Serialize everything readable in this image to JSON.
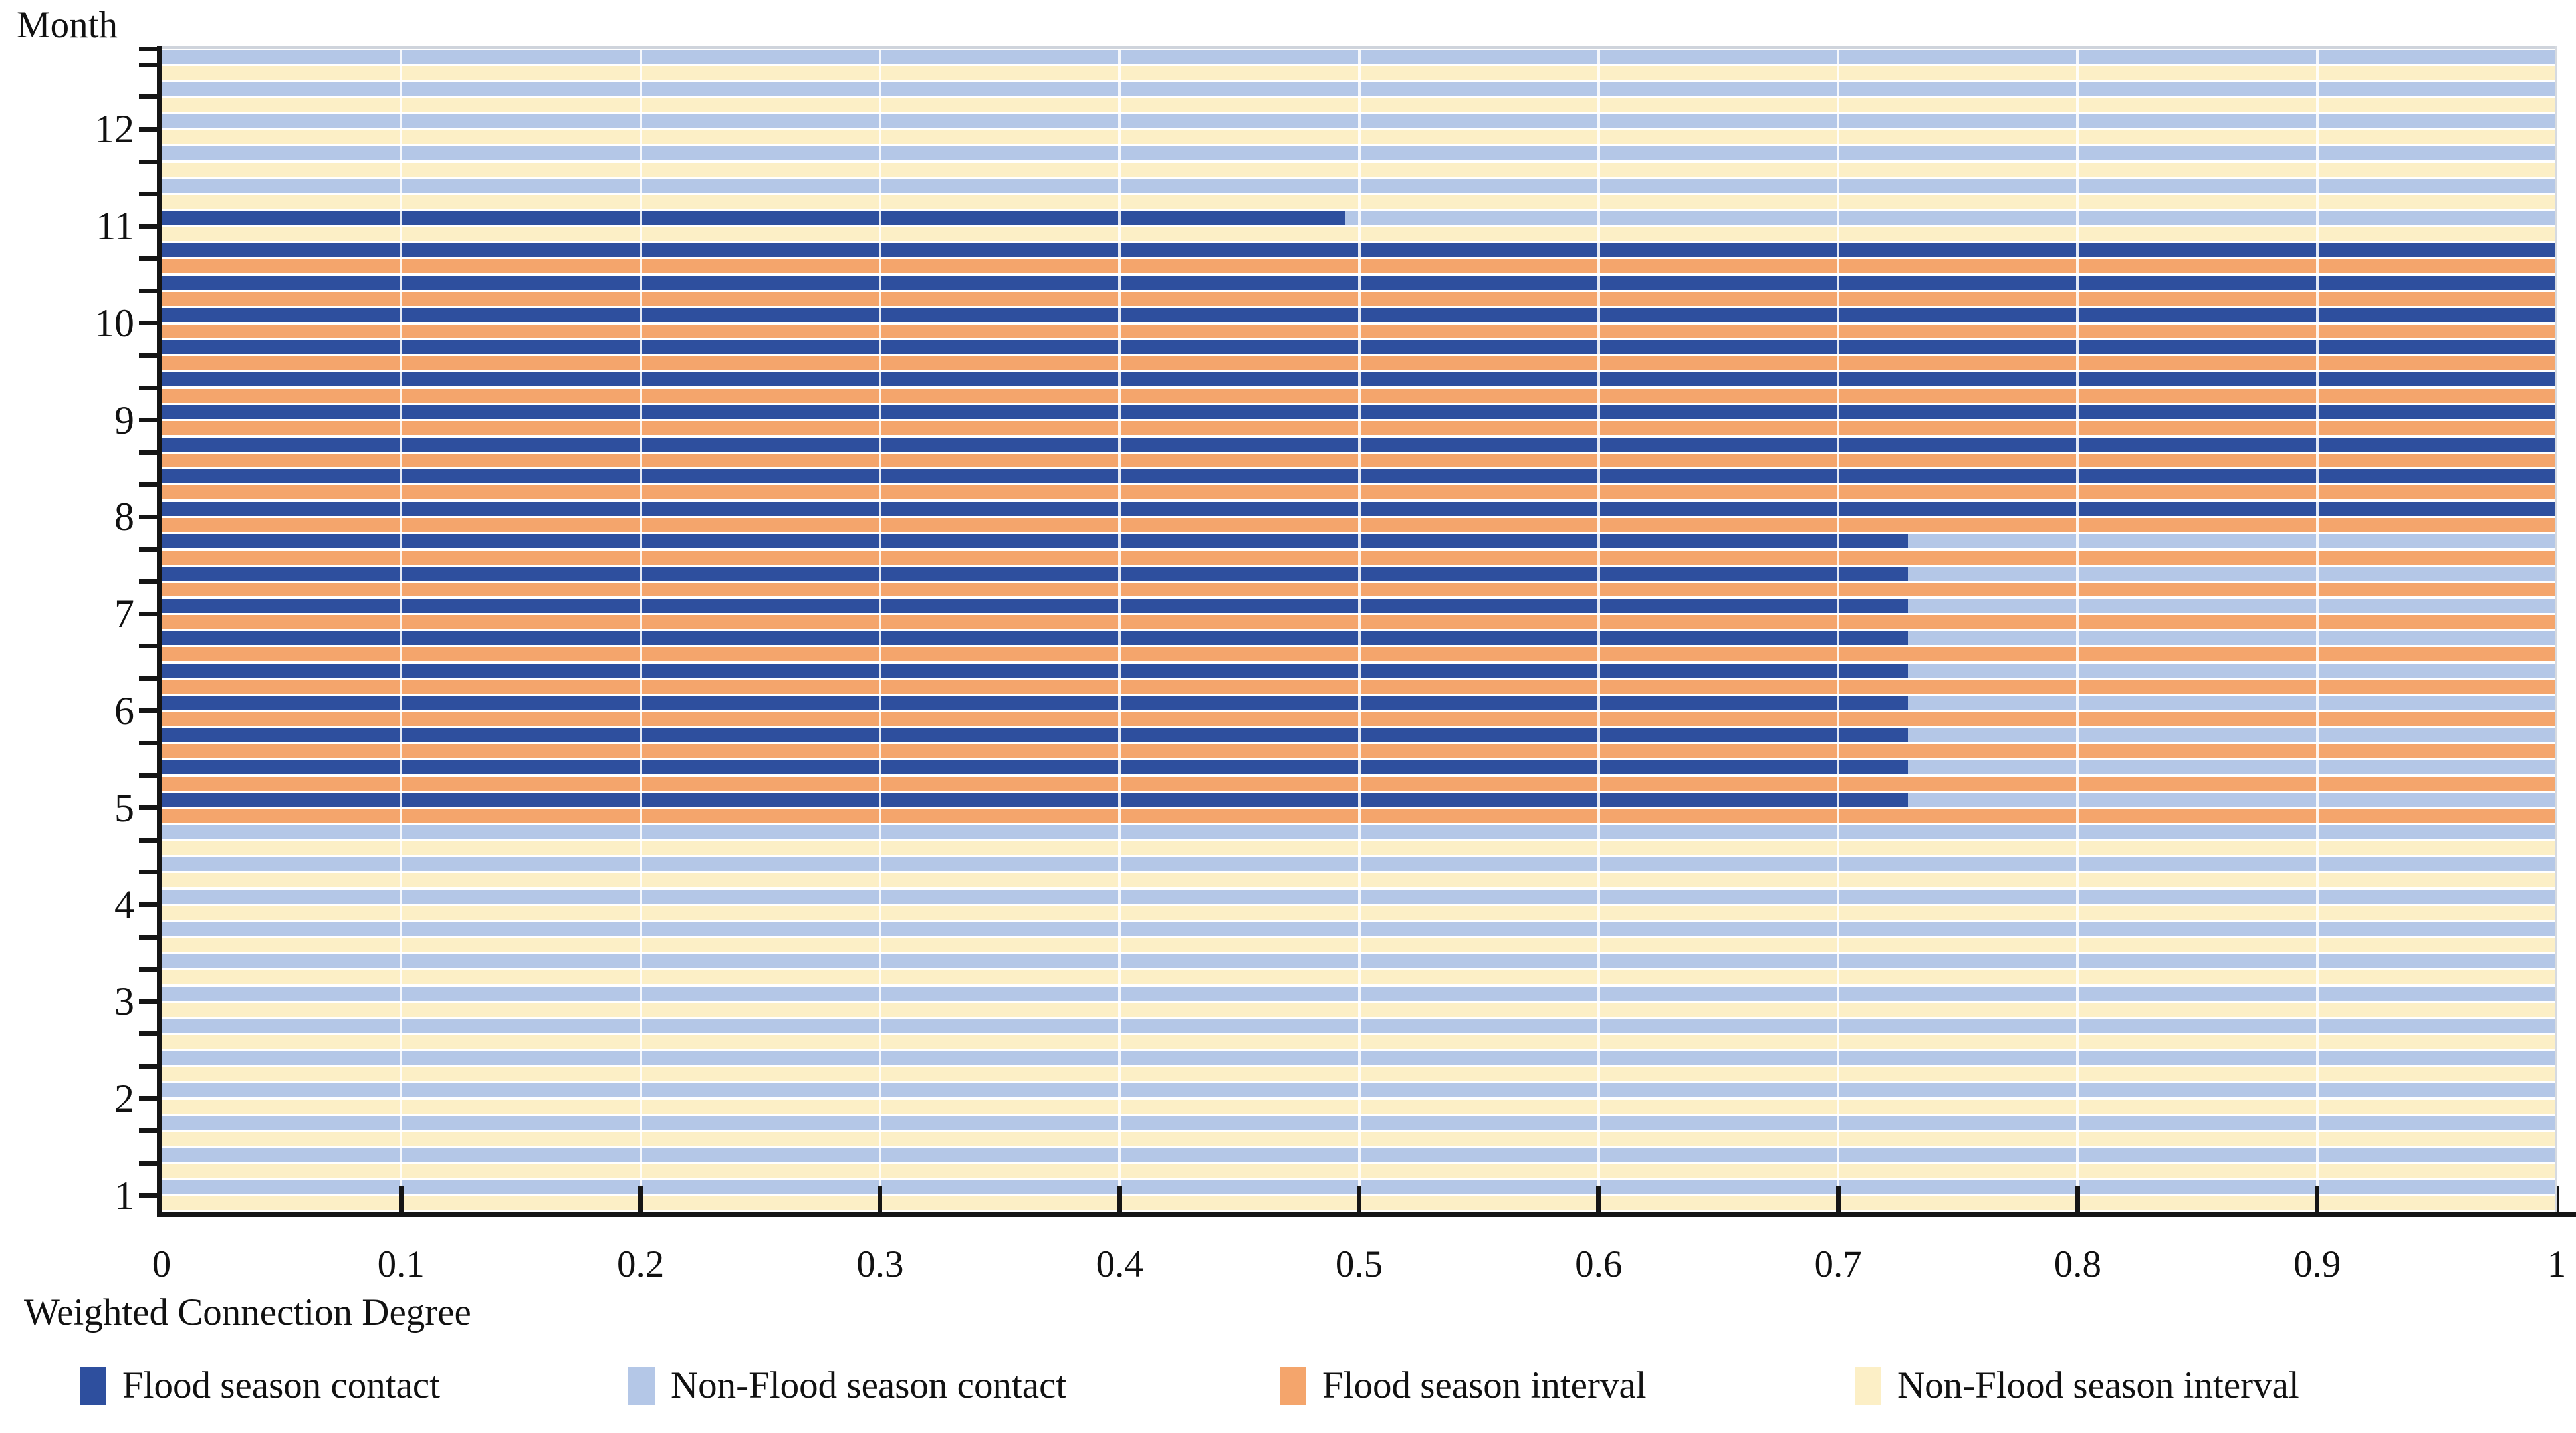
{
  "figure": {
    "y_axis_title": "Month",
    "x_axis_title": "Weighted Connection Degree",
    "x_ticks": [
      "0",
      "0.1",
      "0.2",
      "0.3",
      "0.4",
      "0.5",
      "0.6",
      "0.7",
      "0.8",
      "0.9",
      "1"
    ],
    "month_labels": [
      "12",
      "11",
      "10",
      "9",
      "8",
      "7",
      "6",
      "5",
      "4",
      "3",
      "2",
      "1"
    ]
  },
  "legend": [
    {
      "key": "fc",
      "label": "Flood season contact",
      "color": "#2E4F9E"
    },
    {
      "key": "nfc",
      "label": "Non-Flood season contact",
      "color": "#B4C7E7"
    },
    {
      "key": "fi",
      "label": "Flood season interval",
      "color": "#F4A56C"
    },
    {
      "key": "nfi",
      "label": "Non-Flood season interval",
      "color": "#FCEFC6"
    }
  ],
  "chart_data": {
    "type": "bar",
    "orientation": "horizontal",
    "stacked": true,
    "title": "",
    "xlabel": "Weighted Connection Degree",
    "ylabel": "Month",
    "xlim": [
      0,
      1
    ],
    "x_tick_values": [
      0,
      0.1,
      0.2,
      0.3,
      0.4,
      0.5,
      0.6,
      0.7,
      0.8,
      0.9,
      1
    ],
    "grid": "white vertical gridlines at each 0.1",
    "legend_position": "bottom",
    "months_top_to_bottom": [
      12,
      11,
      10,
      9,
      8,
      7,
      6,
      5,
      4,
      3,
      2,
      1
    ],
    "bars_per_month": 6,
    "summary": {
      "months_12_and_4_3_2_1": {
        "contact": [
          [
            "nfc",
            0,
            1
          ]
        ],
        "interval": [
          [
            "nfi",
            0,
            1
          ]
        ]
      },
      "month_11": {
        "flood_contact_fraction": 0.494,
        "other_rows": "non-flood contact / non-flood interval full width"
      },
      "months_10_9_8": {
        "contact": [
          [
            "fc",
            0,
            1
          ]
        ],
        "interval": [
          [
            "fi",
            0,
            1
          ]
        ]
      },
      "months_7_6_5": {
        "flood_contact_fraction": 0.729,
        "interval": [
          [
            "fi",
            0,
            1
          ]
        ]
      }
    },
    "rows": [
      {
        "segments": [
          [
            "nfc",
            0,
            1
          ]
        ]
      },
      {
        "segments": [
          [
            "nfi",
            0,
            1
          ]
        ]
      },
      {
        "segments": [
          [
            "nfc",
            0,
            1
          ]
        ]
      },
      {
        "segments": [
          [
            "nfi",
            0,
            1
          ]
        ]
      },
      {
        "segments": [
          [
            "nfc",
            0,
            1
          ]
        ]
      },
      {
        "segments": [
          [
            "nfi",
            0,
            1
          ]
        ]
      },
      {
        "segments": [
          [
            "nfc",
            0,
            1
          ]
        ]
      },
      {
        "segments": [
          [
            "nfi",
            0,
            1
          ]
        ]
      },
      {
        "segments": [
          [
            "nfc",
            0,
            1
          ]
        ]
      },
      {
        "segments": [
          [
            "nfi",
            0,
            1
          ]
        ]
      },
      {
        "segments": [
          [
            "fc",
            0,
            0.494
          ],
          [
            "nfc",
            0.494,
            1
          ]
        ]
      },
      {
        "segments": [
          [
            "nfi",
            0,
            1
          ]
        ]
      },
      {
        "segments": [
          [
            "fc",
            0,
            1
          ]
        ]
      },
      {
        "segments": [
          [
            "fi",
            0,
            1
          ]
        ]
      },
      {
        "segments": [
          [
            "fc",
            0,
            1
          ]
        ]
      },
      {
        "segments": [
          [
            "fi",
            0,
            1
          ]
        ]
      },
      {
        "segments": [
          [
            "fc",
            0,
            1
          ]
        ]
      },
      {
        "segments": [
          [
            "fi",
            0,
            1
          ]
        ]
      },
      {
        "segments": [
          [
            "fc",
            0,
            1
          ]
        ]
      },
      {
        "segments": [
          [
            "fi",
            0,
            1
          ]
        ]
      },
      {
        "segments": [
          [
            "fc",
            0,
            1
          ]
        ]
      },
      {
        "segments": [
          [
            "fi",
            0,
            1
          ]
        ]
      },
      {
        "segments": [
          [
            "fc",
            0,
            1
          ]
        ]
      },
      {
        "segments": [
          [
            "fi",
            0,
            1
          ]
        ]
      },
      {
        "segments": [
          [
            "fc",
            0,
            1
          ]
        ]
      },
      {
        "segments": [
          [
            "fi",
            0,
            1
          ]
        ]
      },
      {
        "segments": [
          [
            "fc",
            0,
            1
          ]
        ]
      },
      {
        "segments": [
          [
            "fi",
            0,
            1
          ]
        ]
      },
      {
        "segments": [
          [
            "fc",
            0,
            1
          ]
        ]
      },
      {
        "segments": [
          [
            "fi",
            0,
            1
          ]
        ]
      },
      {
        "segments": [
          [
            "fc",
            0,
            0.729
          ],
          [
            "nfc",
            0.729,
            1
          ]
        ]
      },
      {
        "segments": [
          [
            "fi",
            0,
            1
          ]
        ]
      },
      {
        "segments": [
          [
            "fc",
            0,
            0.729
          ],
          [
            "nfc",
            0.729,
            1
          ]
        ]
      },
      {
        "segments": [
          [
            "fi",
            0,
            1
          ]
        ]
      },
      {
        "segments": [
          [
            "fc",
            0,
            0.729
          ],
          [
            "nfc",
            0.729,
            1
          ]
        ]
      },
      {
        "segments": [
          [
            "fi",
            0,
            1
          ]
        ]
      },
      {
        "segments": [
          [
            "fc",
            0,
            0.729
          ],
          [
            "nfc",
            0.729,
            1
          ]
        ]
      },
      {
        "segments": [
          [
            "fi",
            0,
            1
          ]
        ]
      },
      {
        "segments": [
          [
            "fc",
            0,
            0.729
          ],
          [
            "nfc",
            0.729,
            1
          ]
        ]
      },
      {
        "segments": [
          [
            "fi",
            0,
            1
          ]
        ]
      },
      {
        "segments": [
          [
            "fc",
            0,
            0.729
          ],
          [
            "nfc",
            0.729,
            1
          ]
        ]
      },
      {
        "segments": [
          [
            "fi",
            0,
            1
          ]
        ]
      },
      {
        "segments": [
          [
            "fc",
            0,
            0.729
          ],
          [
            "nfc",
            0.729,
            1
          ]
        ]
      },
      {
        "segments": [
          [
            "fi",
            0,
            1
          ]
        ]
      },
      {
        "segments": [
          [
            "fc",
            0,
            0.729
          ],
          [
            "nfc",
            0.729,
            1
          ]
        ]
      },
      {
        "segments": [
          [
            "fi",
            0,
            1
          ]
        ]
      },
      {
        "segments": [
          [
            "fc",
            0,
            0.729
          ],
          [
            "nfc",
            0.729,
            1
          ]
        ]
      },
      {
        "segments": [
          [
            "fi",
            0,
            1
          ]
        ]
      },
      {
        "segments": [
          [
            "nfc",
            0,
            1
          ]
        ]
      },
      {
        "segments": [
          [
            "nfi",
            0,
            1
          ]
        ]
      },
      {
        "segments": [
          [
            "nfc",
            0,
            1
          ]
        ]
      },
      {
        "segments": [
          [
            "nfi",
            0,
            1
          ]
        ]
      },
      {
        "segments": [
          [
            "nfc",
            0,
            1
          ]
        ]
      },
      {
        "segments": [
          [
            "nfi",
            0,
            1
          ]
        ]
      },
      {
        "segments": [
          [
            "nfc",
            0,
            1
          ]
        ]
      },
      {
        "segments": [
          [
            "nfi",
            0,
            1
          ]
        ]
      },
      {
        "segments": [
          [
            "nfc",
            0,
            1
          ]
        ]
      },
      {
        "segments": [
          [
            "nfi",
            0,
            1
          ]
        ]
      },
      {
        "segments": [
          [
            "nfc",
            0,
            1
          ]
        ]
      },
      {
        "segments": [
          [
            "nfi",
            0,
            1
          ]
        ]
      },
      {
        "segments": [
          [
            "nfc",
            0,
            1
          ]
        ]
      },
      {
        "segments": [
          [
            "nfi",
            0,
            1
          ]
        ]
      },
      {
        "segments": [
          [
            "nfc",
            0,
            1
          ]
        ]
      },
      {
        "segments": [
          [
            "nfi",
            0,
            1
          ]
        ]
      },
      {
        "segments": [
          [
            "nfc",
            0,
            1
          ]
        ]
      },
      {
        "segments": [
          [
            "nfi",
            0,
            1
          ]
        ]
      },
      {
        "segments": [
          [
            "nfc",
            0,
            1
          ]
        ]
      },
      {
        "segments": [
          [
            "nfi",
            0,
            1
          ]
        ]
      },
      {
        "segments": [
          [
            "nfc",
            0,
            1
          ]
        ]
      },
      {
        "segments": [
          [
            "nfi",
            0,
            1
          ]
        ]
      },
      {
        "segments": [
          [
            "nfc",
            0,
            1
          ]
        ]
      },
      {
        "segments": [
          [
            "nfi",
            0,
            1
          ]
        ]
      }
    ]
  }
}
